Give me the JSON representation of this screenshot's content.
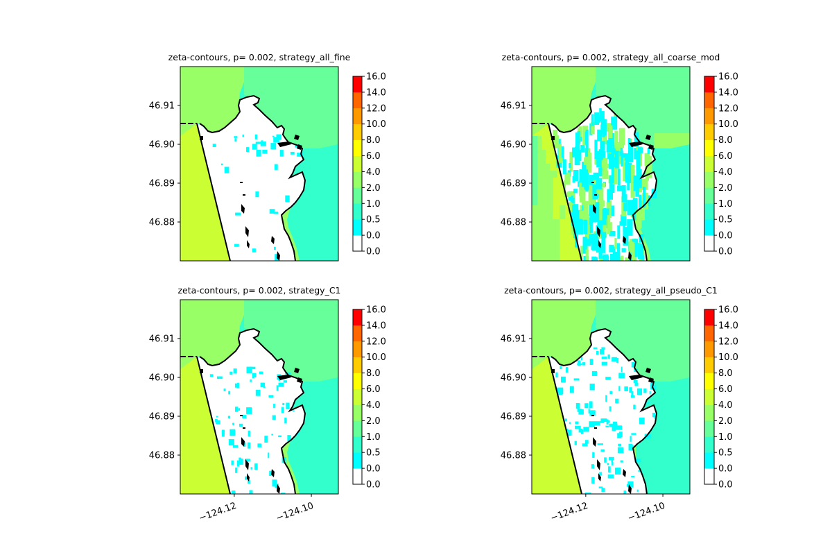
{
  "figure": {
    "background": "#ffffff"
  },
  "chart_data": [
    {
      "type": "heatmap",
      "title": "zeta-contours, p= 0.002, strategy_all_fine",
      "y_ticks": [
        "46.91",
        "46.90",
        "46.89",
        "46.88"
      ],
      "y_tick_values": [
        46.91,
        46.9,
        46.89,
        46.88
      ],
      "x_ticks": [],
      "x_tick_values": [],
      "xlim": [
        -124.134,
        -124.093
      ],
      "ylim": [
        46.87,
        46.92
      ],
      "variant": "fine",
      "colorbar": {
        "levels": [
          "0.0",
          "0.0",
          "0.5",
          "1.0",
          "2.0",
          "4.0",
          "6.0",
          "8.0",
          "10.0",
          "12.0",
          "14.0",
          "16.0"
        ],
        "colors": [
          "#ffffff",
          "#00ffff",
          "#33ffcc",
          "#66ff99",
          "#99ff66",
          "#ccff33",
          "#ffff00",
          "#ffcc00",
          "#ff9900",
          "#ff6600",
          "#ff0000"
        ]
      }
    },
    {
      "type": "heatmap",
      "title": "zeta-contours, p= 0.002, strategy_all_coarse_mod",
      "y_ticks": [
        "46.91",
        "46.90",
        "46.89",
        "46.88"
      ],
      "y_tick_values": [
        46.91,
        46.9,
        46.89,
        46.88
      ],
      "x_ticks": [],
      "x_tick_values": [],
      "xlim": [
        -124.134,
        -124.093
      ],
      "ylim": [
        46.87,
        46.92
      ],
      "variant": "coarse",
      "colorbar": {
        "levels": [
          "0.0",
          "0.0",
          "0.5",
          "1.0",
          "2.0",
          "4.0",
          "6.0",
          "8.0",
          "10.0",
          "12.0",
          "14.0",
          "16.0"
        ],
        "colors": [
          "#ffffff",
          "#00ffff",
          "#33ffcc",
          "#66ff99",
          "#99ff66",
          "#ccff33",
          "#ffff00",
          "#ffcc00",
          "#ff9900",
          "#ff6600",
          "#ff0000"
        ]
      }
    },
    {
      "type": "heatmap",
      "title": "zeta-contours, p= 0.002, strategy_C1",
      "y_ticks": [
        "46.91",
        "46.90",
        "46.89",
        "46.88"
      ],
      "y_tick_values": [
        46.91,
        46.9,
        46.89,
        46.88
      ],
      "x_ticks": [
        "−124.12",
        "−124.10"
      ],
      "x_tick_values": [
        -124.12,
        -124.1
      ],
      "xlim": [
        -124.134,
        -124.093
      ],
      "ylim": [
        46.87,
        46.92
      ],
      "variant": "c1",
      "colorbar": {
        "levels": [
          "0.0",
          "0.0",
          "0.5",
          "1.0",
          "2.0",
          "4.0",
          "6.0",
          "8.0",
          "10.0",
          "12.0",
          "14.0",
          "16.0"
        ],
        "colors": [
          "#ffffff",
          "#00ffff",
          "#33ffcc",
          "#66ff99",
          "#99ff66",
          "#ccff33",
          "#ffff00",
          "#ffcc00",
          "#ff9900",
          "#ff6600",
          "#ff0000"
        ]
      }
    },
    {
      "type": "heatmap",
      "title": "zeta-contours, p= 0.002, strategy_all_pseudo_C1",
      "y_ticks": [
        "46.91",
        "46.90",
        "46.89",
        "46.88"
      ],
      "y_tick_values": [
        46.91,
        46.9,
        46.89,
        46.88
      ],
      "x_ticks": [
        "−124.12",
        "−124.10"
      ],
      "x_tick_values": [
        -124.12,
        -124.1
      ],
      "xlim": [
        -124.134,
        -124.093
      ],
      "ylim": [
        46.87,
        46.92
      ],
      "variant": "pseudo",
      "colorbar": {
        "levels": [
          "0.0",
          "0.0",
          "0.5",
          "1.0",
          "2.0",
          "4.0",
          "6.0",
          "8.0",
          "10.0",
          "12.0",
          "14.0",
          "16.0"
        ],
        "colors": [
          "#ffffff",
          "#00ffff",
          "#33ffcc",
          "#66ff99",
          "#99ff66",
          "#ccff33",
          "#ffff00",
          "#ffcc00",
          "#ff9900",
          "#ff6600",
          "#ff0000"
        ]
      }
    }
  ]
}
